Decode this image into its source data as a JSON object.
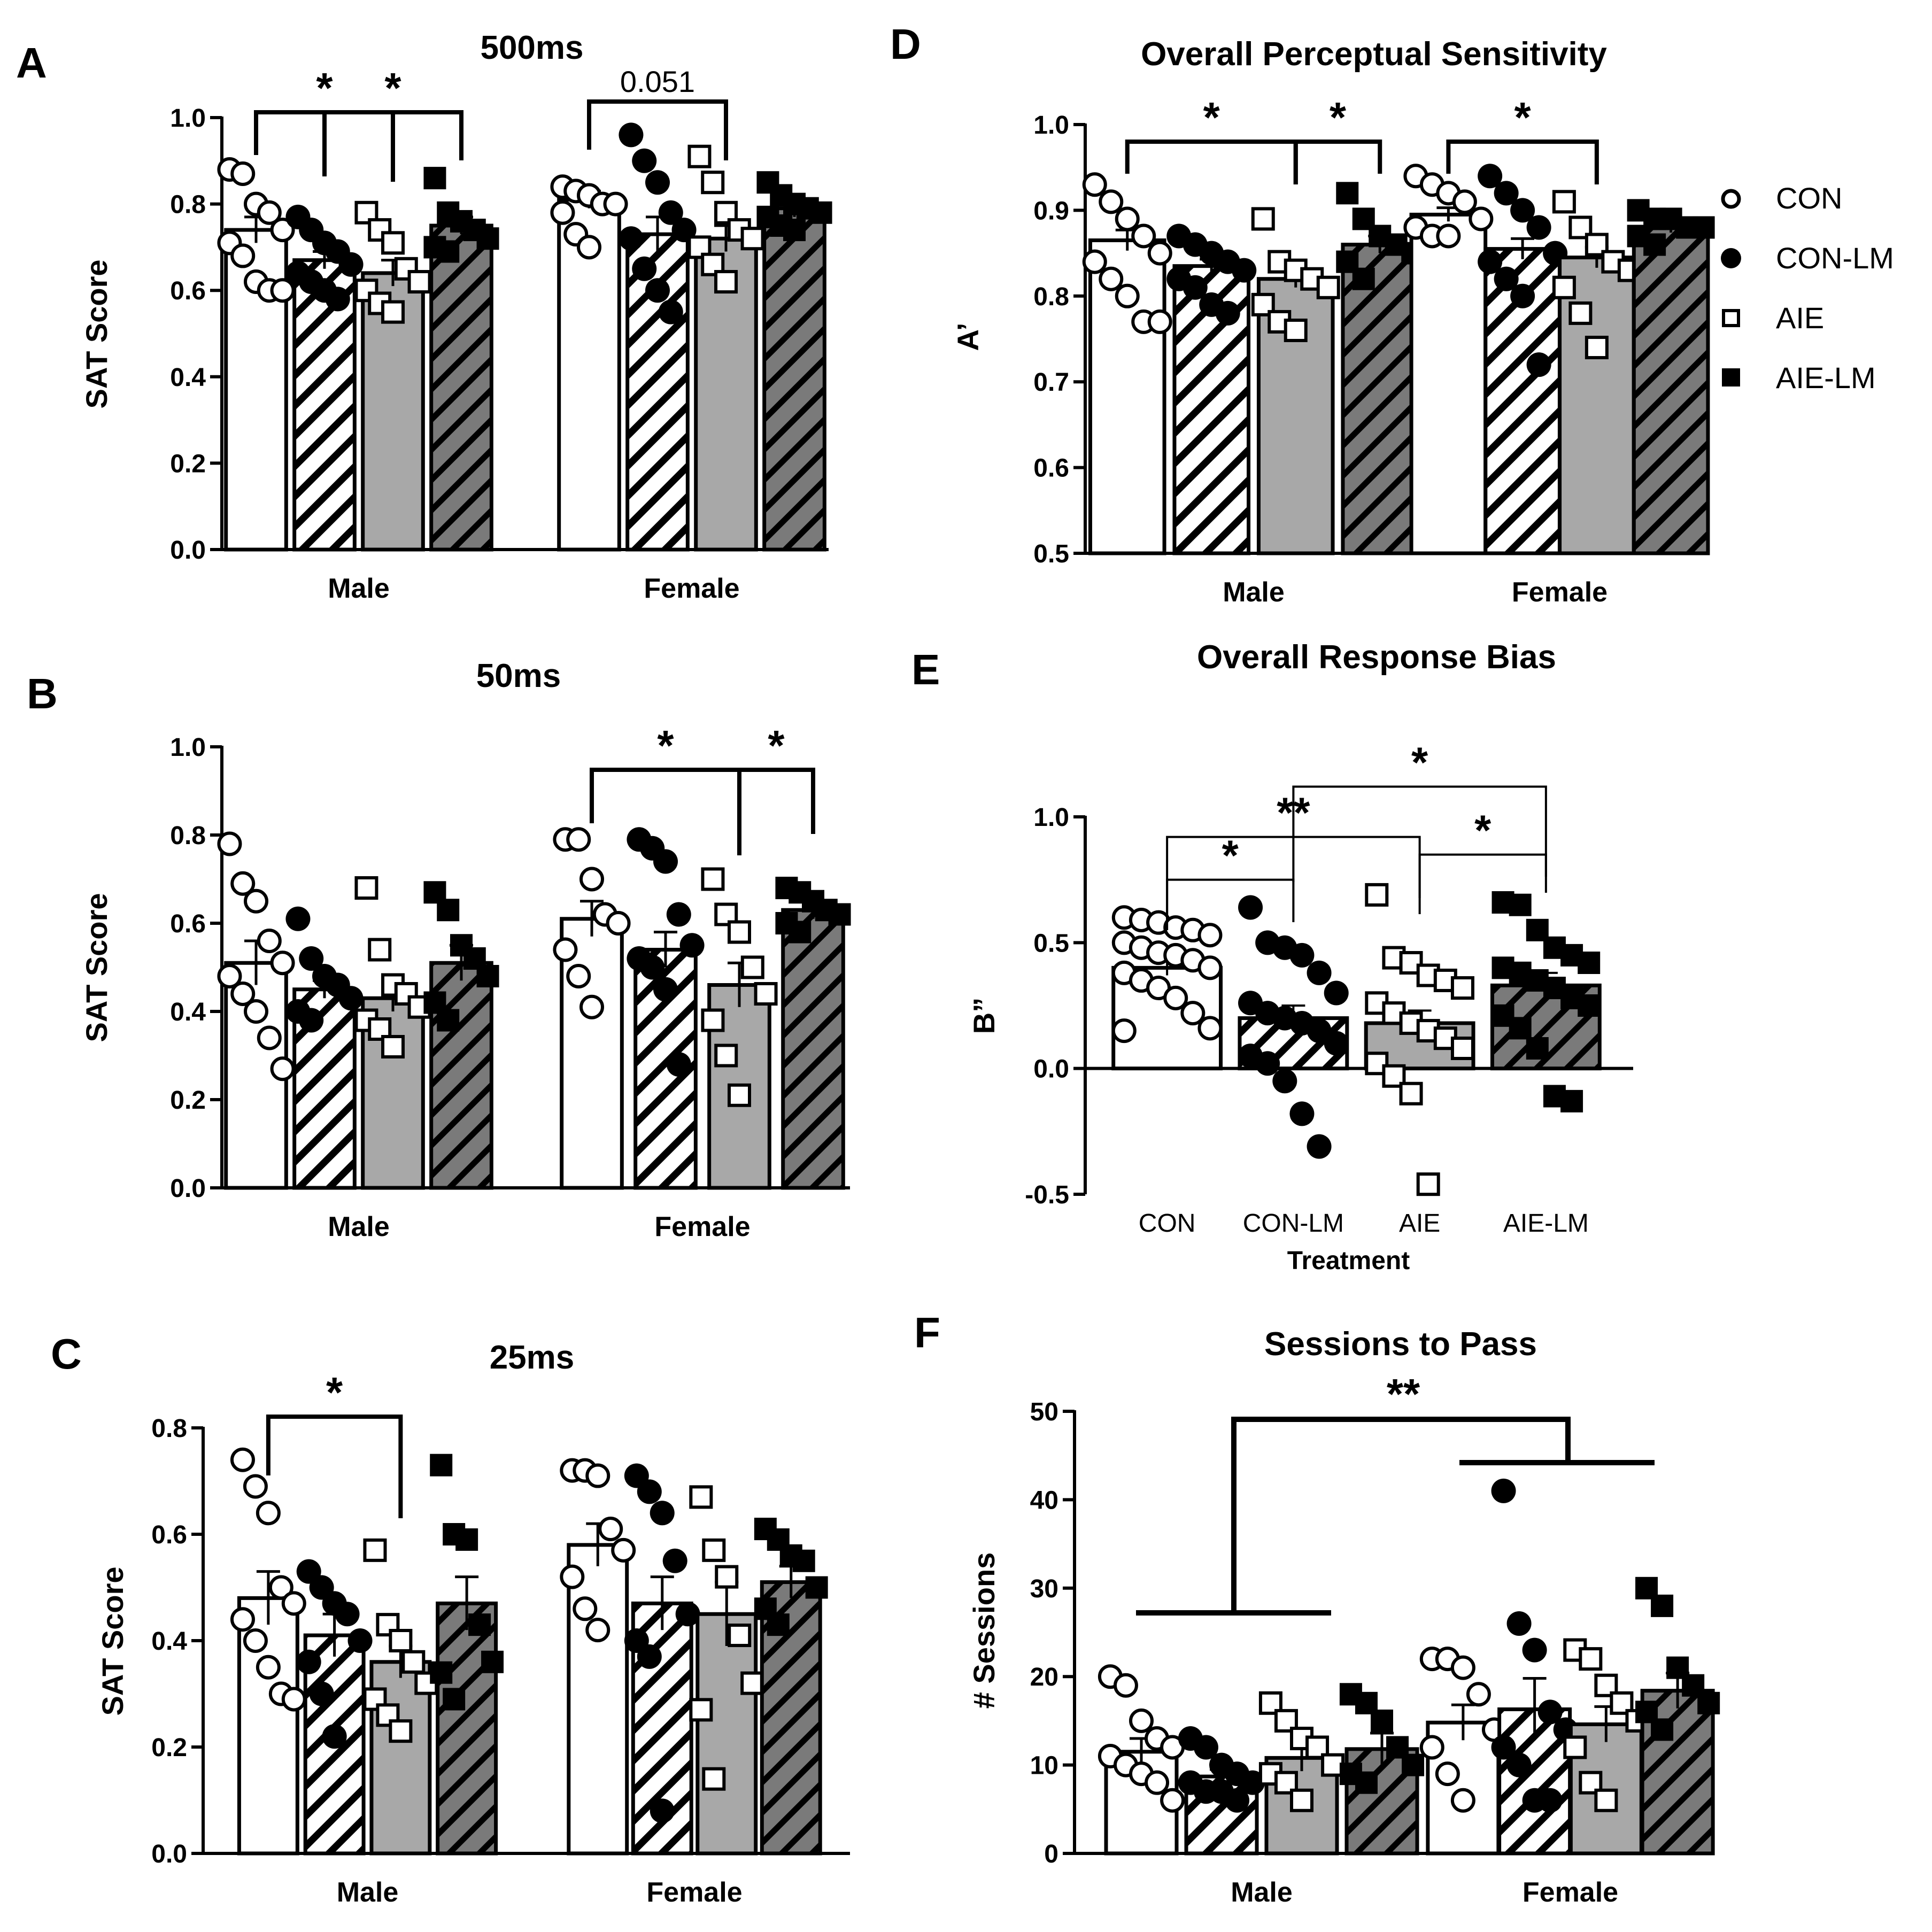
{
  "colors": {
    "CON": "#ffffff",
    "CON-LM": "#ffffff",
    "AIE": "#a8a8a8",
    "AIE-LM": "#7a7a7a",
    "axis": "#000000",
    "hatch": "#000000"
  },
  "legend": {
    "items": [
      {
        "label": "CON",
        "marker": "open-circle"
      },
      {
        "label": "CON-LM",
        "marker": "filled-circle"
      },
      {
        "label": "AIE",
        "marker": "open-square"
      },
      {
        "label": "AIE-LM",
        "marker": "filled-square"
      }
    ]
  },
  "chart_data": [
    {
      "id": "A",
      "letter": "A",
      "type": "bar",
      "title": "500ms",
      "ylabel": "SAT Score",
      "xlabel": "",
      "ylim": [
        0,
        1.0
      ],
      "yticks": [
        "0.0",
        "0.2",
        "0.4",
        "0.6",
        "0.8",
        "1.0"
      ],
      "categories": [
        "Male",
        "Female"
      ],
      "series": [
        {
          "name": "CON",
          "values": [
            0.74,
            0.81
          ],
          "sem": [
            0.03,
            0.02
          ],
          "points": [
            [
              0.88,
              0.87,
              0.8,
              0.78,
              0.74,
              0.71,
              0.68,
              0.62,
              0.6,
              0.6
            ],
            [
              0.84,
              0.83,
              0.82,
              0.8,
              0.8,
              0.78,
              0.73,
              0.7
            ]
          ]
        },
        {
          "name": "CON-LM",
          "values": [
            0.67,
            0.73
          ],
          "sem": [
            0.02,
            0.04
          ],
          "points": [
            [
              0.77,
              0.74,
              0.71,
              0.69,
              0.66,
              0.64,
              0.62,
              0.6,
              0.58
            ],
            [
              0.96,
              0.9,
              0.85,
              0.78,
              0.74,
              0.72,
              0.65,
              0.6,
              0.55
            ]
          ]
        },
        {
          "name": "AIE",
          "values": [
            0.64,
            0.72
          ],
          "sem": [
            0.03,
            0.03
          ],
          "points": [
            [
              0.78,
              0.74,
              0.71,
              0.65,
              0.62,
              0.6,
              0.57,
              0.55
            ],
            [
              0.91,
              0.85,
              0.78,
              0.74,
              0.72,
              0.7,
              0.66,
              0.62
            ]
          ]
        },
        {
          "name": "AIE-LM",
          "values": [
            0.75,
            0.79
          ],
          "sem": [
            0.02,
            0.02
          ],
          "points": [
            [
              0.86,
              0.78,
              0.76,
              0.74,
              0.72,
              0.7,
              0.69
            ],
            [
              0.85,
              0.82,
              0.8,
              0.79,
              0.78,
              0.77,
              0.75,
              0.74
            ]
          ]
        }
      ],
      "annotations": [
        {
          "text": "*",
          "cat": 0,
          "from": 0,
          "to": 2
        },
        {
          "text": "*",
          "cat": 0,
          "from": 1,
          "to": 3
        },
        {
          "text": "0.051",
          "cat": 1,
          "from": 0,
          "to": 2
        }
      ]
    },
    {
      "id": "B",
      "letter": "B",
      "type": "bar",
      "title": "50ms",
      "ylabel": "SAT Score",
      "xlabel": "",
      "ylim": [
        0,
        1.0
      ],
      "yticks": [
        "0.0",
        "0.2",
        "0.4",
        "0.6",
        "0.8",
        "1.0"
      ],
      "categories": [
        "Male",
        "Female"
      ],
      "series": [
        {
          "name": "CON",
          "values": [
            0.51,
            0.61
          ],
          "sem": [
            0.05,
            0.04
          ],
          "points": [
            [
              0.78,
              0.69,
              0.65,
              0.56,
              0.51,
              0.48,
              0.44,
              0.4,
              0.34,
              0.27
            ],
            [
              0.79,
              0.79,
              0.7,
              0.62,
              0.6,
              0.54,
              0.48,
              0.41
            ]
          ]
        },
        {
          "name": "CON-LM",
          "values": [
            0.45,
            0.54
          ],
          "sem": [
            0.02,
            0.04
          ],
          "points": [
            [
              0.61,
              0.52,
              0.48,
              0.46,
              0.43,
              0.4,
              0.38
            ],
            [
              0.79,
              0.77,
              0.74,
              0.62,
              0.55,
              0.52,
              0.5,
              0.45,
              0.28
            ]
          ]
        },
        {
          "name": "AIE",
          "values": [
            0.43,
            0.46
          ],
          "sem": [
            0.03,
            0.05
          ],
          "points": [
            [
              0.68,
              0.54,
              0.46,
              0.44,
              0.41,
              0.38,
              0.36,
              0.32
            ],
            [
              0.7,
              0.62,
              0.58,
              0.5,
              0.44,
              0.38,
              0.3,
              0.21
            ]
          ]
        },
        {
          "name": "AIE-LM",
          "values": [
            0.51,
            0.63
          ],
          "sem": [
            0.04,
            0.02
          ],
          "points": [
            [
              0.67,
              0.63,
              0.55,
              0.52,
              0.48,
              0.42,
              0.38
            ],
            [
              0.68,
              0.67,
              0.65,
              0.63,
              0.62,
              0.6,
              0.58
            ]
          ]
        }
      ],
      "annotations": [
        {
          "text": "*",
          "cat": 1,
          "from": 0,
          "to": 2
        },
        {
          "text": "*",
          "cat": 1,
          "from": 2,
          "to": 3
        }
      ]
    },
    {
      "id": "C",
      "letter": "C",
      "type": "bar",
      "title": "25ms",
      "ylabel": "SAT Score",
      "xlabel": "",
      "ylim": [
        0,
        0.8
      ],
      "yticks": [
        "0.0",
        "0.2",
        "0.4",
        "0.6",
        "0.8"
      ],
      "categories": [
        "Male",
        "Female"
      ],
      "series": [
        {
          "name": "CON",
          "values": [
            0.48,
            0.58
          ],
          "sem": [
            0.05,
            0.04
          ],
          "points": [
            [
              0.74,
              0.69,
              0.64,
              0.5,
              0.47,
              0.44,
              0.4,
              0.35,
              0.3,
              0.29
            ],
            [
              0.72,
              0.72,
              0.71,
              0.61,
              0.57,
              0.52,
              0.46,
              0.42
            ]
          ]
        },
        {
          "name": "CON-LM",
          "values": [
            0.41,
            0.47
          ],
          "sem": [
            0.04,
            0.05
          ],
          "points": [
            [
              0.53,
              0.5,
              0.47,
              0.45,
              0.4,
              0.36,
              0.3,
              0.22
            ],
            [
              0.71,
              0.68,
              0.64,
              0.55,
              0.45,
              0.4,
              0.37,
              0.08
            ]
          ]
        },
        {
          "name": "AIE",
          "values": [
            0.36,
            0.45
          ],
          "sem": [
            0.03,
            0.06
          ],
          "points": [
            [
              0.57,
              0.43,
              0.4,
              0.36,
              0.32,
              0.29,
              0.26,
              0.23
            ],
            [
              0.67,
              0.57,
              0.52,
              0.41,
              0.32,
              0.27,
              0.14
            ]
          ]
        },
        {
          "name": "AIE-LM",
          "values": [
            0.47,
            0.51
          ],
          "sem": [
            0.05,
            0.03
          ],
          "points": [
            [
              0.73,
              0.6,
              0.59,
              0.43,
              0.36,
              0.34,
              0.29
            ],
            [
              0.61,
              0.59,
              0.56,
              0.55,
              0.5,
              0.46,
              0.43
            ]
          ]
        }
      ],
      "annotations": [
        {
          "text": "*",
          "cat": 0,
          "from": 0,
          "to": 2
        }
      ]
    },
    {
      "id": "D",
      "letter": "D",
      "type": "bar",
      "title": "Overall Perceptual Sensitivity",
      "ylabel": "A’",
      "xlabel": "",
      "ylim": [
        0.5,
        1.0
      ],
      "yticks": [
        "0.5",
        "0.6",
        "0.7",
        "0.8",
        "0.9",
        "1.0"
      ],
      "categories": [
        "Male",
        "Female"
      ],
      "series": [
        {
          "name": "CON",
          "values": [
            0.865,
            0.895
          ],
          "sem": [
            0.012,
            0.008
          ],
          "points": [
            [
              0.93,
              0.91,
              0.89,
              0.87,
              0.85,
              0.84,
              0.82,
              0.8,
              0.77,
              0.77
            ],
            [
              0.94,
              0.93,
              0.92,
              0.91,
              0.89,
              0.88,
              0.87,
              0.87
            ]
          ]
        },
        {
          "name": "CON-LM",
          "values": [
            0.835,
            0.855
          ],
          "sem": [
            0.008,
            0.012
          ],
          "points": [
            [
              0.87,
              0.86,
              0.85,
              0.84,
              0.83,
              0.82,
              0.81,
              0.79,
              0.78
            ],
            [
              0.94,
              0.92,
              0.9,
              0.88,
              0.85,
              0.84,
              0.82,
              0.8,
              0.72
            ]
          ]
        },
        {
          "name": "AIE",
          "values": [
            0.82,
            0.845
          ],
          "sem": [
            0.01,
            0.012
          ],
          "points": [
            [
              0.89,
              0.84,
              0.83,
              0.82,
              0.81,
              0.79,
              0.77,
              0.76
            ],
            [
              0.91,
              0.88,
              0.86,
              0.84,
              0.83,
              0.81,
              0.78,
              0.74
            ]
          ]
        },
        {
          "name": "AIE-LM",
          "values": [
            0.86,
            0.88
          ],
          "sem": [
            0.01,
            0.006
          ],
          "points": [
            [
              0.92,
              0.89,
              0.87,
              0.86,
              0.85,
              0.84,
              0.82
            ],
            [
              0.9,
              0.89,
              0.89,
              0.88,
              0.88,
              0.87,
              0.86
            ]
          ]
        }
      ],
      "annotations": [
        {
          "text": "*",
          "cat": 0,
          "from": 0,
          "to": 2
        },
        {
          "text": "*",
          "cat": 0,
          "from": 2,
          "to": 3
        },
        {
          "text": "*",
          "cat": 1,
          "from": 0,
          "to": 2
        }
      ]
    },
    {
      "id": "E",
      "letter": "E",
      "type": "bar",
      "title": "Overall Response Bias",
      "ylabel": "B”",
      "xlabel": "Treatment",
      "ylim": [
        -0.5,
        1.0
      ],
      "yticks": [
        "-0.5",
        "0.0",
        "0.5",
        "1.0"
      ],
      "categories": [
        "CON",
        "CON-LM",
        "AIE",
        "AIE-LM"
      ],
      "series": [
        {
          "name": "B”",
          "values": [
            0.4,
            0.2,
            0.18,
            0.33
          ],
          "sem": [
            0.03,
            0.05,
            0.05,
            0.05
          ],
          "points": [
            [
              0.6,
              0.59,
              0.58,
              0.56,
              0.55,
              0.53,
              0.5,
              0.48,
              0.46,
              0.45,
              0.43,
              0.4,
              0.38,
              0.35,
              0.32,
              0.28,
              0.22,
              0.16,
              0.15
            ],
            [
              0.64,
              0.5,
              0.48,
              0.45,
              0.38,
              0.3,
              0.26,
              0.22,
              0.2,
              0.18,
              0.15,
              0.1,
              0.05,
              0.02,
              -0.05,
              -0.18,
              -0.31
            ],
            [
              0.69,
              0.44,
              0.42,
              0.37,
              0.35,
              0.32,
              0.26,
              0.22,
              0.18,
              0.15,
              0.12,
              0.08,
              0.02,
              -0.03,
              -0.1,
              -0.46
            ],
            [
              0.66,
              0.65,
              0.55,
              0.48,
              0.45,
              0.42,
              0.4,
              0.38,
              0.35,
              0.32,
              0.28,
              0.25,
              0.21,
              0.16,
              0.08,
              -0.11,
              -0.13
            ]
          ]
        }
      ],
      "annotations": [
        {
          "text": "*",
          "from": 0,
          "to": 1,
          "level": 0.75
        },
        {
          "text": "**",
          "from": 0,
          "to": 2,
          "level": 0.92
        },
        {
          "text": "*",
          "from": 2,
          "to": 3,
          "level": 0.85
        },
        {
          "text": "*",
          "from": 1,
          "to": 3,
          "level": 1.12
        }
      ]
    },
    {
      "id": "F",
      "letter": "F",
      "type": "bar",
      "title": "Sessions to Pass",
      "ylabel": "# Sessions",
      "xlabel": "",
      "ylim": [
        0,
        50
      ],
      "yticks": [
        "0",
        "10",
        "20",
        "30",
        "40",
        "50"
      ],
      "categories": [
        "Male",
        "Female"
      ],
      "series": [
        {
          "name": "CON",
          "values": [
            11.5,
            14.8
          ],
          "sem": [
            1.5,
            2.0
          ],
          "points": [
            [
              20,
              19,
              15,
              13,
              12,
              11,
              10,
              9,
              8,
              6
            ],
            [
              22,
              22,
              21,
              18,
              14,
              12,
              9,
              6
            ]
          ]
        },
        {
          "name": "CON-LM",
          "values": [
            8.7,
            16.3
          ],
          "sem": [
            0.8,
            3.5
          ],
          "points": [
            [
              13,
              12,
              10,
              9,
              8,
              8,
              7,
              7,
              6
            ],
            [
              41,
              26,
              23,
              16,
              14,
              12,
              10,
              6,
              6
            ]
          ]
        },
        {
          "name": "AIE",
          "values": [
            10.8,
            14.6
          ],
          "sem": [
            1.5,
            2.0
          ],
          "points": [
            [
              17,
              15,
              13,
              12,
              10,
              9,
              8,
              6
            ],
            [
              23,
              22,
              19,
              17,
              15,
              12,
              8,
              6
            ]
          ]
        },
        {
          "name": "AIE-LM",
          "values": [
            11.8,
            18.4
          ],
          "sem": [
            1.8,
            2.0
          ],
          "points": [
            [
              18,
              17,
              15,
              12,
              10,
              9,
              8
            ],
            [
              30,
              28,
              21,
              19,
              17,
              16,
              14
            ]
          ]
        }
      ],
      "annotations": [
        {
          "text": "**",
          "type": "sex-main-effect"
        }
      ]
    }
  ]
}
